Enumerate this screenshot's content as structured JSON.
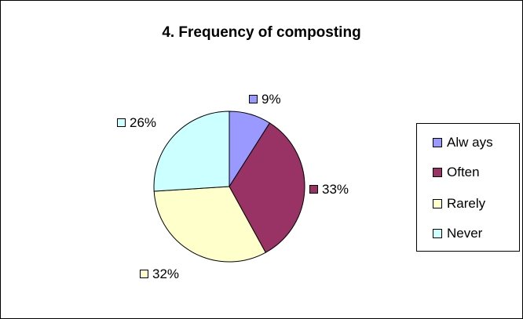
{
  "chart_data": {
    "type": "pie",
    "title": "4. Frequency of composting",
    "categories": [
      "Always",
      "Often",
      "Rarely",
      "Never"
    ],
    "values": [
      9,
      33,
      32,
      26
    ],
    "labels": [
      "9%",
      "33%",
      "32%",
      "26%"
    ],
    "colors": [
      "#9999ff",
      "#993366",
      "#ffffcc",
      "#ccffff"
    ],
    "legend_labels": [
      "Alw ays",
      "Often",
      "Rarely",
      "Never"
    ],
    "legend_position": "right"
  }
}
